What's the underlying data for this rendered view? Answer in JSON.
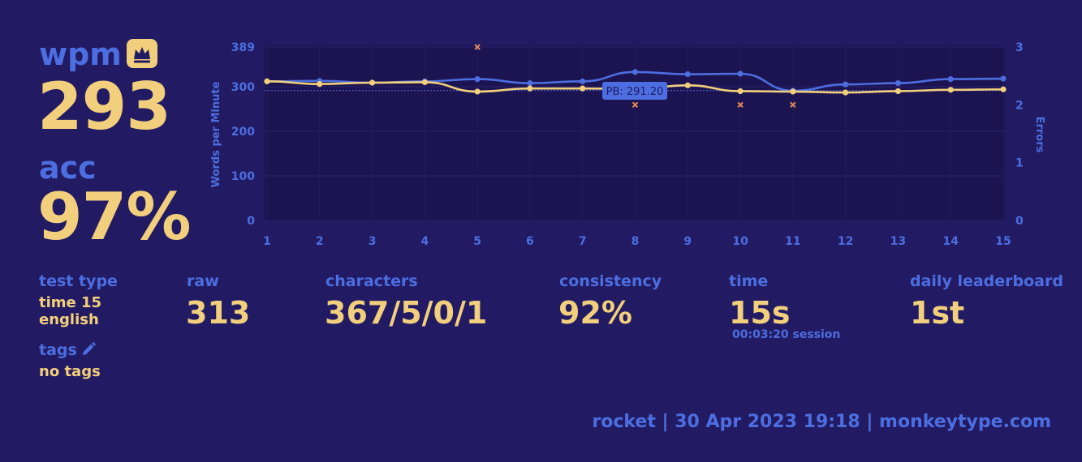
{
  "colors": {
    "background": "#221b63",
    "accent_blue": "#4c6ee0",
    "accent_yellow": "#f2cf7c",
    "plot_bg": "#1c1450"
  },
  "summary": {
    "wpm_label": "wpm",
    "wpm_value": "293",
    "acc_label": "acc",
    "acc_value": "97%",
    "pb_icon": "crown-icon"
  },
  "details": {
    "test_type_label": "test type",
    "test_type_line1": "time 15",
    "test_type_line2": "english",
    "tags_label": "tags",
    "tags_icon": "pencil-icon",
    "tags_value": "no tags",
    "raw_label": "raw",
    "raw_value": "313",
    "characters_label": "characters",
    "characters_value": "367/5/0/1",
    "consistency_label": "consistency",
    "consistency_value": "92%",
    "time_label": "time",
    "time_value": "15s",
    "session_value": "00:03:20 session",
    "leaderboard_label": "daily leaderboard",
    "leaderboard_value": "1st"
  },
  "footer": {
    "text": "rocket | 30 Apr 2023 19:18 | monkeytype.com"
  },
  "chart_data": {
    "type": "line",
    "x": [
      1,
      2,
      3,
      4,
      5,
      6,
      7,
      8,
      9,
      10,
      11,
      12,
      13,
      14,
      15
    ],
    "ylabel": "Words per Minute",
    "y2label": "Errors",
    "ylim": [
      0,
      389
    ],
    "y2lim": [
      0,
      3
    ],
    "yticks": [
      "0",
      "100",
      "200",
      "300",
      "389"
    ],
    "y2ticks": [
      "0",
      "1",
      "2",
      "3"
    ],
    "pb_label": "PB: 291.20",
    "pb_value": 291.2,
    "series": [
      {
        "color": "#4c6ee0",
        "values": [
          312,
          313,
          309,
          312,
          317,
          308,
          312,
          333,
          328,
          329,
          291,
          305,
          308,
          317,
          318
        ]
      },
      {
        "color": "#f2cf7c",
        "values": [
          312,
          306,
          309,
          310,
          289,
          296,
          296,
          295,
          303,
          290,
          289,
          287,
          290,
          293,
          294
        ]
      }
    ],
    "errors": [
      {
        "x": 5,
        "count": 3
      },
      {
        "x": 8,
        "count": 2
      },
      {
        "x": 10,
        "count": 2
      },
      {
        "x": 11,
        "count": 2
      }
    ],
    "grid": true,
    "legend": "none"
  }
}
